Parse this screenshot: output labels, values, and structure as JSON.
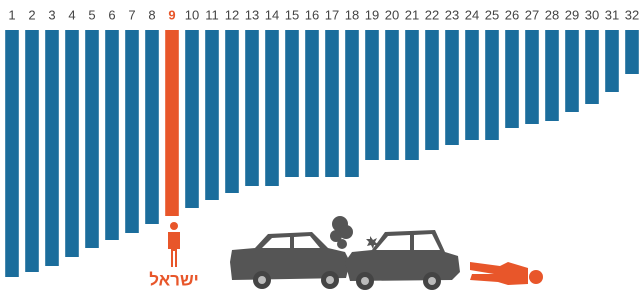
{
  "chart_data": {
    "type": "bar",
    "categories": [
      "1",
      "2",
      "3",
      "4",
      "5",
      "6",
      "7",
      "8",
      "9",
      "10",
      "11",
      "12",
      "13",
      "14",
      "15",
      "16",
      "17",
      "18",
      "19",
      "20",
      "21",
      "22",
      "23",
      "24",
      "25",
      "26",
      "27",
      "28",
      "29",
      "30",
      "31",
      "32"
    ],
    "values": [
      247,
      242,
      236,
      227,
      218,
      210,
      203,
      194,
      186,
      178,
      170,
      163,
      156,
      156,
      147,
      147,
      147,
      147,
      130,
      130,
      130,
      120,
      115,
      110,
      110,
      98,
      94,
      91,
      82,
      74,
      62,
      44
    ],
    "color": "#1b6d9c",
    "highlight_index": 8,
    "highlight_color": "#e8562a",
    "ylim": [
      0,
      250
    ],
    "annotation": "ישראל"
  }
}
